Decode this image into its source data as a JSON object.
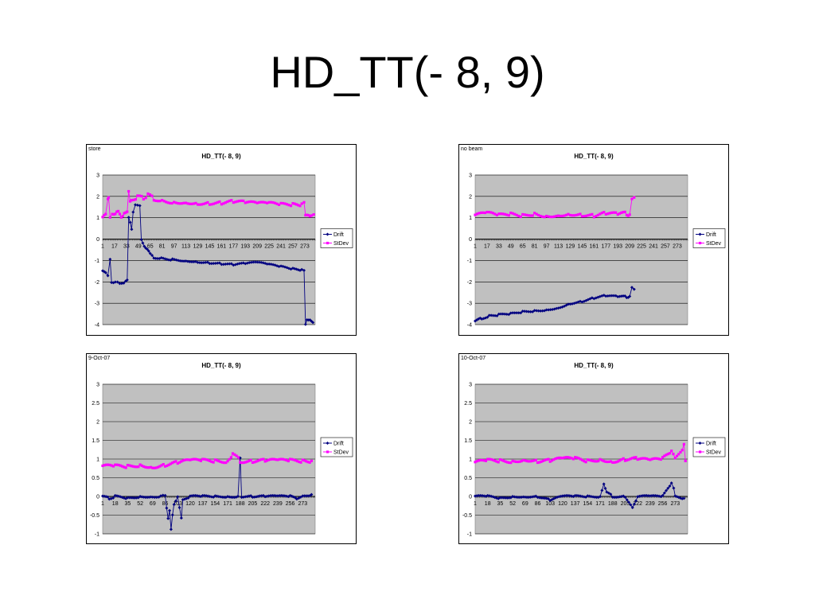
{
  "slide": {
    "title": "HD_TT(- 8, 9)"
  },
  "colors": {
    "drift": "#000080",
    "stdev": "#ff00ff",
    "plot_bg": "#c0c0c0"
  },
  "chart_data": [
    {
      "type": "line",
      "corner_label": "store",
      "title": "HD_TT(- 8, 9)",
      "ylim": [
        -4,
        3
      ],
      "yticks": [
        "3",
        "2",
        "1",
        "0",
        "-1",
        "-2",
        "-3",
        "-4"
      ],
      "xlim": [
        1,
        287
      ],
      "xticks": [
        "1",
        "17",
        "33",
        "49",
        "65",
        "81",
        "97",
        "113",
        "129",
        "145",
        "161",
        "177",
        "193",
        "209",
        "225",
        "241",
        "257",
        "273"
      ],
      "legend": "right",
      "series": [
        {
          "name": "Drift",
          "points": [
            [
              1,
              -1.5
            ],
            [
              5,
              -1.6
            ],
            [
              8,
              -1.7
            ],
            [
              11,
              -0.9
            ],
            [
              13,
              -2.0
            ],
            [
              18,
              -2.05
            ],
            [
              24,
              -2.05
            ],
            [
              32,
              -2.0
            ],
            [
              34,
              -1.95
            ],
            [
              36,
              1.0
            ],
            [
              38,
              0.8
            ],
            [
              40,
              0.5
            ],
            [
              42,
              1.3
            ],
            [
              45,
              1.6
            ],
            [
              48,
              1.55
            ],
            [
              51,
              1.55
            ],
            [
              53,
              0.0
            ],
            [
              57,
              -0.3
            ],
            [
              61,
              -0.5
            ],
            [
              65,
              -0.7
            ],
            [
              70,
              -0.85
            ],
            [
              80,
              -0.9
            ],
            [
              95,
              -0.95
            ],
            [
              113,
              -1.0
            ],
            [
              129,
              -1.05
            ],
            [
              145,
              -1.1
            ],
            [
              161,
              -1.15
            ],
            [
              177,
              -1.2
            ],
            [
              193,
              -1.15
            ],
            [
              209,
              -1.1
            ],
            [
              225,
              -1.2
            ],
            [
              241,
              -1.3
            ],
            [
              257,
              -1.4
            ],
            [
              269,
              -1.45
            ],
            [
              272,
              -1.5
            ],
            [
              274,
              -4.0
            ],
            [
              276,
              -3.75
            ],
            [
              280,
              -3.75
            ],
            [
              284,
              -3.9
            ]
          ]
        },
        {
          "name": "StDev",
          "points": [
            [
              1,
              1.0
            ],
            [
              5,
              1.1
            ],
            [
              8,
              1.9
            ],
            [
              9,
              2.0
            ],
            [
              11,
              1.1
            ],
            [
              14,
              1.2
            ],
            [
              18,
              1.1
            ],
            [
              22,
              1.3
            ],
            [
              26,
              1.1
            ],
            [
              30,
              1.2
            ],
            [
              34,
              1.2
            ],
            [
              36,
              2.2
            ],
            [
              38,
              1.8
            ],
            [
              40,
              1.9
            ],
            [
              48,
              1.95
            ],
            [
              56,
              1.95
            ],
            [
              62,
              2.05
            ],
            [
              70,
              1.9
            ],
            [
              81,
              1.8
            ],
            [
              97,
              1.75
            ],
            [
              113,
              1.75
            ],
            [
              129,
              1.7
            ],
            [
              145,
              1.7
            ],
            [
              161,
              1.7
            ],
            [
              177,
              1.75
            ],
            [
              193,
              1.7
            ],
            [
              209,
              1.65
            ],
            [
              225,
              1.65
            ],
            [
              241,
              1.6
            ],
            [
              257,
              1.6
            ],
            [
              269,
              1.6
            ],
            [
              272,
              1.65
            ],
            [
              274,
              1.1
            ],
            [
              278,
              1.2
            ],
            [
              282,
              1.1
            ],
            [
              285,
              1.15
            ]
          ]
        }
      ]
    },
    {
      "type": "line",
      "corner_label": "no beam",
      "title": "HD_TT(- 8, 9)",
      "ylim": [
        -4,
        3
      ],
      "yticks": [
        "3",
        "2",
        "1",
        "0",
        "-1",
        "-2",
        "-3",
        "-4"
      ],
      "xlim": [
        1,
        287
      ],
      "xticks": [
        "1",
        "17",
        "33",
        "49",
        "65",
        "81",
        "97",
        "113",
        "129",
        "145",
        "161",
        "177",
        "193",
        "209",
        "225",
        "241",
        "257",
        "273"
      ],
      "legend": "right",
      "series": [
        {
          "name": "Drift",
          "points": [
            [
              1,
              -3.85
            ],
            [
              10,
              -3.7
            ],
            [
              20,
              -3.6
            ],
            [
              33,
              -3.55
            ],
            [
              49,
              -3.5
            ],
            [
              65,
              -3.4
            ],
            [
              81,
              -3.35
            ],
            [
              97,
              -3.3
            ],
            [
              113,
              -3.2
            ],
            [
              129,
              -3.0
            ],
            [
              145,
              -2.9
            ],
            [
              161,
              -2.75
            ],
            [
              177,
              -2.65
            ],
            [
              193,
              -2.7
            ],
            [
              205,
              -2.7
            ],
            [
              209,
              -2.7
            ],
            [
              212,
              -2.3
            ],
            [
              215,
              -2.35
            ]
          ]
        },
        {
          "name": "StDev",
          "points": [
            [
              1,
              1.1
            ],
            [
              17,
              1.2
            ],
            [
              33,
              1.1
            ],
            [
              49,
              1.15
            ],
            [
              65,
              1.1
            ],
            [
              81,
              1.2
            ],
            [
              97,
              1.1
            ],
            [
              113,
              1.15
            ],
            [
              129,
              1.2
            ],
            [
              145,
              1.15
            ],
            [
              161,
              1.1
            ],
            [
              177,
              1.2
            ],
            [
              193,
              1.15
            ],
            [
              205,
              1.2
            ],
            [
              209,
              1.1
            ],
            [
              212,
              1.8
            ],
            [
              215,
              1.95
            ]
          ]
        }
      ]
    },
    {
      "type": "line",
      "corner_label": "9-Oct-07",
      "title": "HD_TT(- 8, 9)",
      "ylim": [
        -1,
        3
      ],
      "yticks": [
        "3",
        "2.5",
        "2",
        "1.5",
        "1",
        "0.5",
        "0",
        "-0.5",
        "-1"
      ],
      "xlim": [
        1,
        290
      ],
      "xticks": [
        "1",
        "18",
        "35",
        "52",
        "69",
        "86",
        "103",
        "120",
        "137",
        "154",
        "171",
        "188",
        "205",
        "222",
        "239",
        "256",
        "273"
      ],
      "legend": "right",
      "series": [
        {
          "name": "Drift",
          "points": [
            [
              1,
              0.0
            ],
            [
              10,
              -0.05
            ],
            [
              18,
              0.0
            ],
            [
              35,
              -0.05
            ],
            [
              52,
              0.0
            ],
            [
              69,
              0.0
            ],
            [
              80,
              0.0
            ],
            [
              86,
              0.05
            ],
            [
              88,
              -0.3
            ],
            [
              90,
              -0.6
            ],
            [
              92,
              -0.4
            ],
            [
              94,
              -0.9
            ],
            [
              96,
              -0.5
            ],
            [
              98,
              -0.2
            ],
            [
              103,
              0.0
            ],
            [
              108,
              -0.6
            ],
            [
              110,
              -0.1
            ],
            [
              120,
              0.0
            ],
            [
              137,
              0.0
            ],
            [
              154,
              0.0
            ],
            [
              171,
              0.0
            ],
            [
              185,
              0.0
            ],
            [
              188,
              1.05
            ],
            [
              190,
              0.0
            ],
            [
              205,
              0.0
            ],
            [
              222,
              0.0
            ],
            [
              239,
              0.0
            ],
            [
              256,
              0.0
            ],
            [
              265,
              -0.05
            ],
            [
              273,
              0.0
            ],
            [
              285,
              0.05
            ]
          ]
        },
        {
          "name": "StDev",
          "points": [
            [
              1,
              0.8
            ],
            [
              18,
              0.8
            ],
            [
              35,
              0.8
            ],
            [
              52,
              0.85
            ],
            [
              69,
              0.8
            ],
            [
              86,
              0.85
            ],
            [
              103,
              0.9
            ],
            [
              120,
              0.95
            ],
            [
              137,
              0.95
            ],
            [
              154,
              0.95
            ],
            [
              171,
              0.95
            ],
            [
              178,
              1.15
            ],
            [
              188,
              0.95
            ],
            [
              205,
              0.95
            ],
            [
              222,
              0.95
            ],
            [
              239,
              0.95
            ],
            [
              256,
              0.95
            ],
            [
              273,
              0.95
            ],
            [
              285,
              0.95
            ]
          ]
        }
      ]
    },
    {
      "type": "line",
      "corner_label": "10-Oct-07",
      "title": "HD_TT(- 8, 9)",
      "ylim": [
        -1,
        3
      ],
      "yticks": [
        "3",
        "2.5",
        "2",
        "1.5",
        "1",
        "0.5",
        "0",
        "-0.5",
        "-1"
      ],
      "xlim": [
        1,
        290
      ],
      "xticks": [
        "1",
        "18",
        "35",
        "52",
        "69",
        "86",
        "103",
        "120",
        "137",
        "154",
        "171",
        "188",
        "205",
        "222",
        "239",
        "256",
        "273"
      ],
      "legend": "right",
      "series": [
        {
          "name": "Drift",
          "points": [
            [
              1,
              0.0
            ],
            [
              18,
              0.0
            ],
            [
              35,
              -0.05
            ],
            [
              52,
              0.0
            ],
            [
              69,
              0.0
            ],
            [
              86,
              0.0
            ],
            [
              103,
              -0.1
            ],
            [
              120,
              0.0
            ],
            [
              137,
              0.0
            ],
            [
              154,
              0.0
            ],
            [
              171,
              0.0
            ],
            [
              176,
              0.35
            ],
            [
              180,
              0.1
            ],
            [
              188,
              0.0
            ],
            [
              205,
              0.0
            ],
            [
              215,
              -0.3
            ],
            [
              222,
              0.0
            ],
            [
              239,
              0.0
            ],
            [
              256,
              0.0
            ],
            [
              268,
              0.35
            ],
            [
              271,
              0.2
            ],
            [
              273,
              0.0
            ],
            [
              285,
              -0.05
            ]
          ]
        },
        {
          "name": "StDev",
          "points": [
            [
              1,
              0.9
            ],
            [
              18,
              0.95
            ],
            [
              35,
              0.95
            ],
            [
              52,
              0.95
            ],
            [
              69,
              1.0
            ],
            [
              86,
              0.95
            ],
            [
              103,
              0.95
            ],
            [
              120,
              1.0
            ],
            [
              137,
              1.0
            ],
            [
              154,
              0.95
            ],
            [
              171,
              1.0
            ],
            [
              188,
              0.95
            ],
            [
              205,
              1.0
            ],
            [
              222,
              1.0
            ],
            [
              239,
              0.95
            ],
            [
              256,
              1.0
            ],
            [
              268,
              1.2
            ],
            [
              273,
              1.0
            ],
            [
              285,
              1.35
            ],
            [
              287,
              0.95
            ]
          ]
        }
      ]
    }
  ]
}
